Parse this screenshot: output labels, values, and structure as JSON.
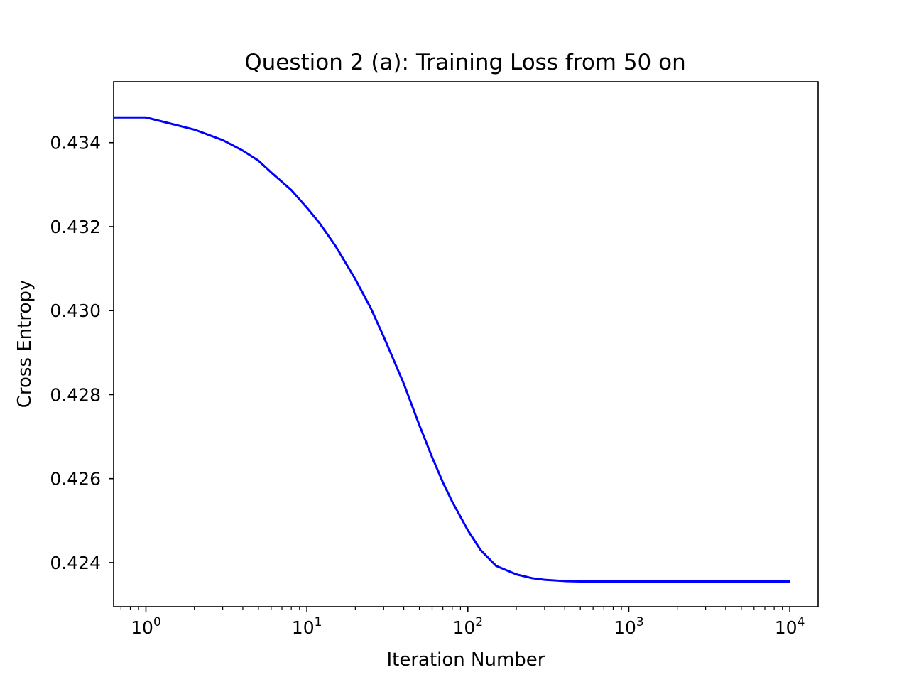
{
  "chart_data": {
    "type": "line",
    "title": "Question 2 (a): Training Loss from 50 on",
    "xlabel": "Iteration Number",
    "ylabel": "Cross Entropy",
    "xscale": "log",
    "xlim": [
      0.63,
      15000
    ],
    "ylim": [
      0.42295,
      0.43545
    ],
    "grid": false,
    "x_ticks": [
      {
        "value": 1,
        "base": "10",
        "exp": "0"
      },
      {
        "value": 10,
        "base": "10",
        "exp": "1"
      },
      {
        "value": 100,
        "base": "10",
        "exp": "2"
      },
      {
        "value": 1000,
        "base": "10",
        "exp": "3"
      },
      {
        "value": 10000,
        "base": "10",
        "exp": "4"
      }
    ],
    "y_ticks": [
      {
        "value": 0.424,
        "label": "0.424"
      },
      {
        "value": 0.426,
        "label": "0.426"
      },
      {
        "value": 0.428,
        "label": "0.428"
      },
      {
        "value": 0.43,
        "label": "0.430"
      },
      {
        "value": 0.432,
        "label": "0.432"
      },
      {
        "value": 0.434,
        "label": "0.434"
      }
    ],
    "series": [
      {
        "color": "#0000ff",
        "x": [
          0.63,
          1,
          2,
          3,
          4,
          5,
          6,
          8,
          10,
          12,
          15,
          20,
          25,
          30,
          40,
          50,
          60,
          70,
          80,
          100,
          120,
          150,
          200,
          250,
          300,
          400,
          500,
          700,
          1000,
          2000,
          5000,
          10000
        ],
        "y": [
          0.4346,
          0.4346,
          0.43431,
          0.43406,
          0.43381,
          0.43357,
          0.43329,
          0.43287,
          0.43245,
          0.43208,
          0.43155,
          0.43075,
          0.43005,
          0.42938,
          0.42826,
          0.42727,
          0.42651,
          0.42591,
          0.42545,
          0.42477,
          0.4243,
          0.42392,
          0.42372,
          0.42363,
          0.42359,
          0.42356,
          0.42355,
          0.42355,
          0.42355,
          0.42355,
          0.42355,
          0.42355
        ]
      }
    ]
  }
}
